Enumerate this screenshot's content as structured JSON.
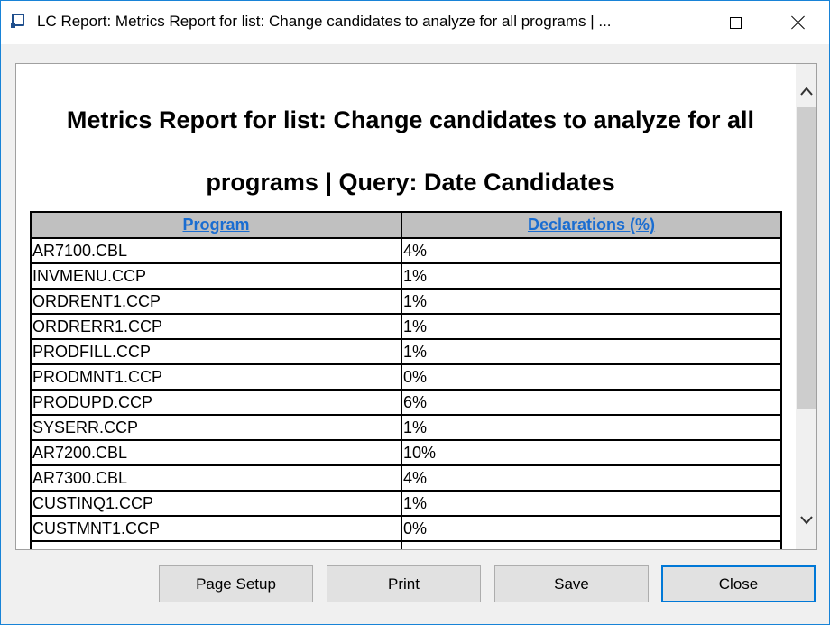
{
  "window": {
    "title": "LC Report: Metrics Report for list: Change candidates to analyze for all programs | ..."
  },
  "report": {
    "title": "Metrics Report for list: Change candidates to analyze for all programs | Query: Date Candidates",
    "columns": [
      "Program ",
      "Declarations (%) "
    ],
    "rows": [
      {
        "program": "AR7100.CBL",
        "declarations": "4%"
      },
      {
        "program": "INVMENU.CCP",
        "declarations": "1%"
      },
      {
        "program": "ORDRENT1.CCP",
        "declarations": "1%"
      },
      {
        "program": "ORDRERR1.CCP",
        "declarations": "1%"
      },
      {
        "program": "PRODFILL.CCP",
        "declarations": "1%"
      },
      {
        "program": "PRODMNT1.CCP",
        "declarations": "0%"
      },
      {
        "program": "PRODUPD.CCP",
        "declarations": "6%"
      },
      {
        "program": "SYSERR.CCP",
        "declarations": "1%"
      },
      {
        "program": "AR7200.CBL",
        "declarations": "10%"
      },
      {
        "program": "AR7300.CBL",
        "declarations": "4%"
      },
      {
        "program": "CUSTINQ1.CCP",
        "declarations": "1%"
      },
      {
        "program": "CUSTMNT1.CCP",
        "declarations": "0%"
      },
      {
        "program": "",
        "declarations": ""
      }
    ]
  },
  "buttons": {
    "page_setup": "Page Setup",
    "print": "Print",
    "save": "Save",
    "close": "Close"
  },
  "colors": {
    "link": "#1a6dd1",
    "header_bg": "#c0c0c0",
    "focus_border": "#0078d7"
  },
  "icons": [
    "app-icon",
    "minimize-icon",
    "maximize-icon",
    "close-icon",
    "chevron-up-icon",
    "chevron-down-icon"
  ]
}
